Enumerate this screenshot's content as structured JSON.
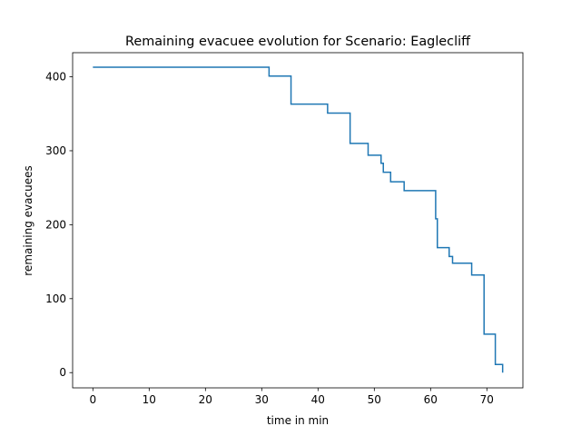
{
  "chart_data": {
    "type": "line",
    "drawstyle": "steps-post",
    "title": "Remaining evacuee evolution for Scenario: Eaglecliff",
    "xlabel": "time in min",
    "ylabel": "remaining evacuees",
    "xlim": [
      -3.6,
      76.4
    ],
    "ylim": [
      -20.6,
      432.6
    ],
    "xticks": [
      0,
      10,
      20,
      30,
      40,
      50,
      60,
      70
    ],
    "yticks": [
      0,
      100,
      200,
      300,
      400
    ],
    "grid": false,
    "legend": "none",
    "series": [
      {
        "color": "#1f77b4",
        "x": [
          0,
          31.3,
          35.2,
          41.7,
          45.7,
          48.9,
          51.2,
          51.6,
          52.9,
          55.3,
          60.9,
          61.2,
          63.3,
          63.9,
          67.3,
          69.5,
          71.5,
          72.8
        ],
        "y": [
          413,
          401,
          363,
          351,
          310,
          294,
          283,
          271,
          258,
          246,
          208,
          169,
          157,
          148,
          132,
          52,
          11,
          0
        ]
      }
    ]
  }
}
